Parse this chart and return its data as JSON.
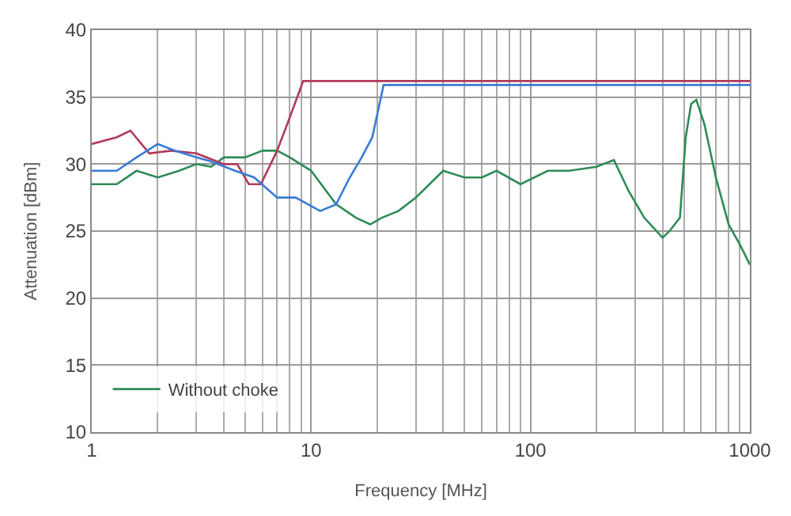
{
  "chart_data": {
    "type": "line",
    "xlabel": "Frequency [MHz]",
    "ylabel": "Attenuation [dBm]",
    "log": "x",
    "grid": true,
    "legend": "bottom left",
    "xlim": [
      1,
      1000
    ],
    "xticks": [
      1,
      10,
      100,
      1000
    ],
    "ylim": [
      10,
      40
    ],
    "yticks": [
      10,
      15,
      20,
      25,
      30,
      35,
      40
    ],
    "series": [
      {
        "name": "Without choke",
        "color": "#2e8b57",
        "x": [
          1,
          1.3,
          1.6,
          2,
          2.5,
          3,
          3.5,
          4,
          5,
          6,
          7,
          8,
          10,
          13,
          16,
          18.6,
          21,
          25,
          30,
          40,
          50,
          60,
          70,
          90,
          120,
          150,
          200,
          240,
          280,
          330,
          400,
          430,
          480,
          510,
          540,
          570,
          620,
          700,
          800,
          900,
          1000
        ],
        "values": [
          28.5,
          28.5,
          29.5,
          29,
          29.5,
          30,
          29.8,
          30.5,
          30.5,
          31,
          31,
          30.5,
          29.5,
          27,
          26,
          25.5,
          26,
          26.5,
          27.5,
          29.5,
          29,
          29,
          29.5,
          28.5,
          29.5,
          29.5,
          29.8,
          30.3,
          28,
          26,
          24.5,
          25,
          26,
          32,
          34.5,
          34.8,
          33,
          29,
          25.5,
          24,
          22.5
        ]
      },
      {
        "color": "#b03a5b",
        "x": [
          1,
          1.3,
          1.5,
          1.83,
          2.3,
          3,
          4,
          4.6,
          5.2,
          5.9,
          7,
          8,
          9.2,
          15,
          30,
          100,
          300,
          1000
        ],
        "values": [
          31.5,
          32,
          32.5,
          30.8,
          31,
          30.8,
          30,
          30,
          28.5,
          28.5,
          31,
          33.5,
          36.2,
          36.2,
          36.2,
          36.2,
          36.2,
          36.2
        ]
      },
      {
        "color": "#3a7bd5",
        "x": [
          1,
          1.3,
          1.6,
          2,
          2.4,
          3,
          3.5,
          4.5,
          5.5,
          7,
          8.5,
          11,
          13,
          15,
          17,
          19,
          21.4,
          30,
          100,
          300,
          1000
        ],
        "values": [
          29.5,
          29.5,
          30.5,
          31.5,
          31,
          30.5,
          30.2,
          29.5,
          29,
          27.5,
          27.5,
          26.5,
          27,
          29,
          30.5,
          32,
          35.9,
          35.9,
          35.9,
          35.9,
          35.9
        ]
      }
    ]
  }
}
